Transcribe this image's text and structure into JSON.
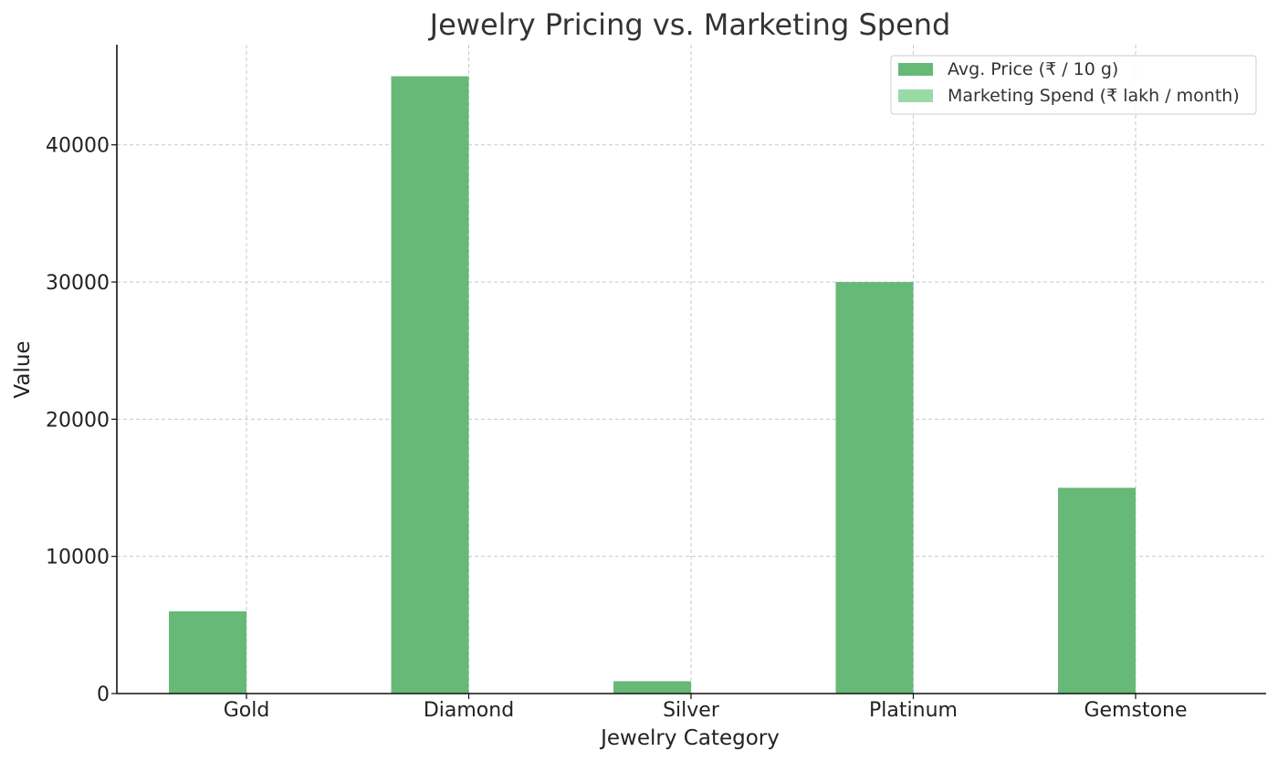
{
  "chart_data": {
    "type": "bar",
    "title": "Jewelry Pricing vs. Marketing Spend",
    "xlabel": "Jewelry Category",
    "ylabel": "Value",
    "categories": [
      "Gold",
      "Diamond",
      "Silver",
      "Platinum",
      "Gemstone"
    ],
    "series": [
      {
        "name": "Avg. Price (₹ / 10 g)",
        "values": [
          6000,
          45000,
          900,
          30000,
          15000
        ],
        "color": "#66b977"
      },
      {
        "name": "Marketing Spend (₹ lakh / month)",
        "values": [
          15,
          12,
          8,
          10,
          9
        ],
        "color": "#99dba6"
      }
    ],
    "ylim": [
      0,
      47300
    ],
    "yticks": [
      0,
      10000,
      20000,
      30000,
      40000
    ],
    "ytick_labels": [
      "0",
      "10000",
      "20000",
      "30000",
      "40000"
    ],
    "grid": true,
    "legend_position": "top-right"
  }
}
